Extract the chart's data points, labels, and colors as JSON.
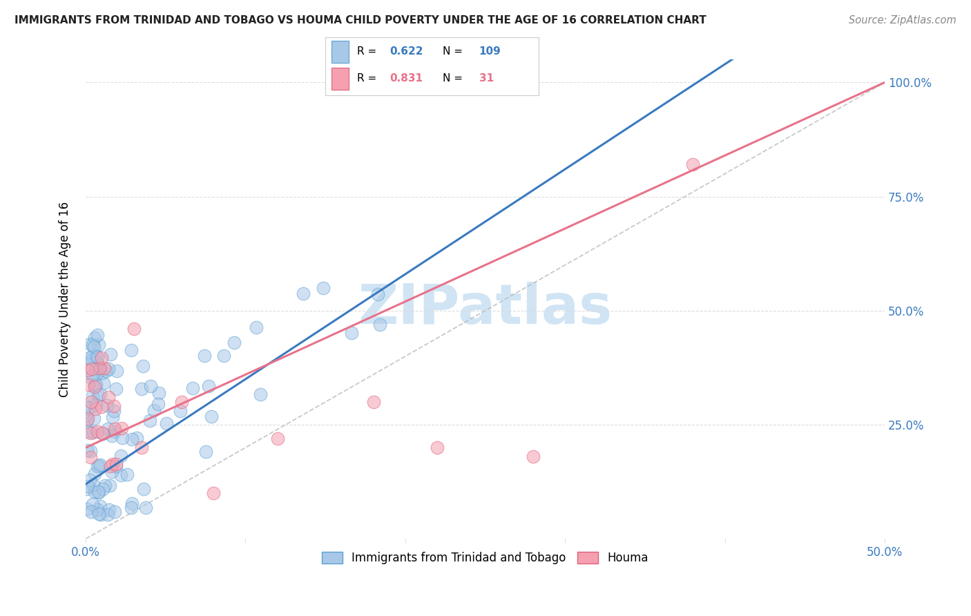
{
  "title": "IMMIGRANTS FROM TRINIDAD AND TOBAGO VS HOUMA CHILD POVERTY UNDER THE AGE OF 16 CORRELATION CHART",
  "source": "Source: ZipAtlas.com",
  "ylabel": "Child Poverty Under the Age of 16",
  "xlim": [
    0.0,
    0.5
  ],
  "ylim": [
    0.0,
    1.05
  ],
  "blue_R": 0.622,
  "blue_N": 109,
  "pink_R": 0.831,
  "pink_N": 31,
  "blue_label": "Immigrants from Trinidad and Tobago",
  "pink_label": "Houma",
  "watermark": "ZIPatlas",
  "blue_line_color": "#3a7abf",
  "pink_line_color": "#e8728a",
  "blue_scatter_face": "#a8c8e8",
  "blue_scatter_edge": "#5a9fd4",
  "pink_scatter_face": "#f4a0b0",
  "pink_scatter_edge": "#e0607a",
  "blue_text_color": "#3a7abf",
  "pink_text_color": "#e8728a",
  "axis_label_color": "#3a7abf",
  "title_color": "#222222",
  "source_color": "#888888",
  "watermark_color": "#d0e4f4",
  "grid_color": "#dddddd",
  "ref_line_color": "#bbbbbb"
}
